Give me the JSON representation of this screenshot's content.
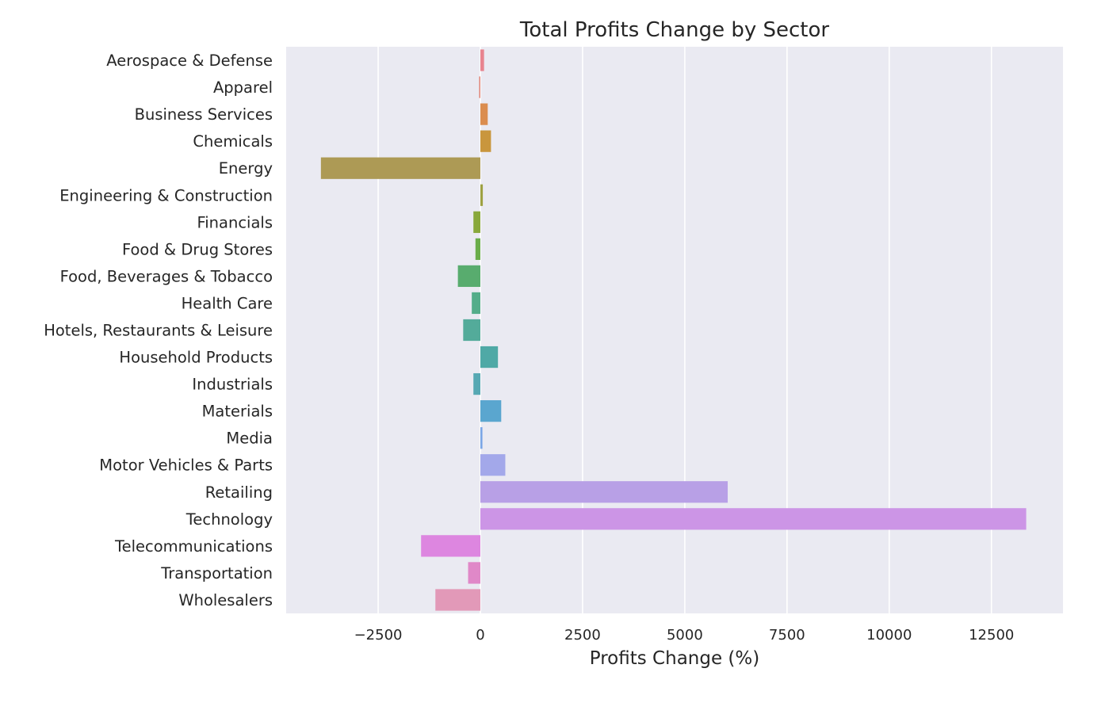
{
  "chart_data": {
    "type": "bar",
    "orientation": "horizontal",
    "title": "Total Profits Change by Sector",
    "xlabel": "Profits Change (%)",
    "ylabel": "",
    "xlim": [
      -4750,
      14250
    ],
    "xticks": [
      -2500,
      0,
      2500,
      5000,
      7500,
      10000,
      12500
    ],
    "xtick_labels": [
      "−2500",
      "0",
      "2500",
      "5000",
      "7500",
      "10000",
      "12500"
    ],
    "grid": true,
    "background": "#eaeaf2",
    "categories": [
      "Aerospace & Defense",
      "Apparel",
      "Business Services",
      "Chemicals",
      "Energy",
      "Engineering & Construction",
      "Financials",
      "Food & Drug Stores",
      "Food, Beverages & Tobacco",
      "Health Care",
      "Hotels, Restaurants & Leisure",
      "Household Products",
      "Industrials",
      "Materials",
      "Media",
      "Motor Vehicles & Parts",
      "Retailing",
      "Technology",
      "Telecommunications",
      "Transportation",
      "Wholesalers"
    ],
    "values": [
      90,
      -30,
      180,
      260,
      -3900,
      60,
      -170,
      -120,
      -550,
      -210,
      -420,
      430,
      -170,
      510,
      50,
      610,
      6050,
      13350,
      -1450,
      -300,
      -1100
    ],
    "colors": [
      "#e8848f",
      "#e2887a",
      "#db8d4f",
      "#c9963d",
      "#ad9a55",
      "#9ea142",
      "#88a83a",
      "#6aad4a",
      "#58ac6e",
      "#54ad8a",
      "#53ab9a",
      "#4fa9a6",
      "#56a8b3",
      "#5aa6cf",
      "#7aa6e6",
      "#a3a8ea",
      "#b8a0e6",
      "#cc95e6",
      "#dd86e0",
      "#e088c8",
      "#e299b8"
    ]
  }
}
